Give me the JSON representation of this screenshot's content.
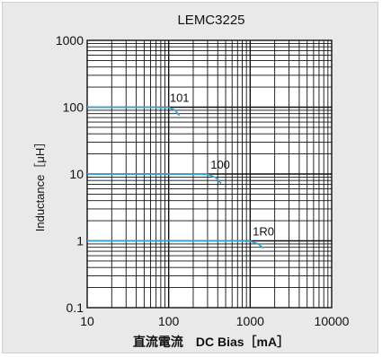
{
  "chart_data": {
    "type": "line",
    "title": "LEMC3225",
    "xlabel": "直流電流　DC Bias［mA］",
    "ylabel": "Inductance［μH］",
    "x_scale": "log",
    "y_scale": "log",
    "xlim": [
      10,
      10000
    ],
    "ylim": [
      0.1,
      1000
    ],
    "x_ticks": [
      "10",
      "100",
      "1000",
      "10000"
    ],
    "y_ticks": [
      "1000",
      "100",
      "10",
      "1",
      "0.1"
    ],
    "grid": true,
    "line_color": "#3ba3cf",
    "series": [
      {
        "name": "101",
        "x": [
          10,
          50,
          100,
          120,
          135
        ],
        "y": [
          100,
          100,
          99,
          90,
          75
        ]
      },
      {
        "name": "100",
        "x": [
          10,
          150,
          300,
          380,
          440
        ],
        "y": [
          10,
          10,
          9.9,
          8.8,
          7.2
        ]
      },
      {
        "name": "1R0",
        "x": [
          10,
          500,
          1000,
          1250,
          1450
        ],
        "y": [
          1,
          1,
          0.99,
          0.9,
          0.78
        ]
      }
    ]
  }
}
